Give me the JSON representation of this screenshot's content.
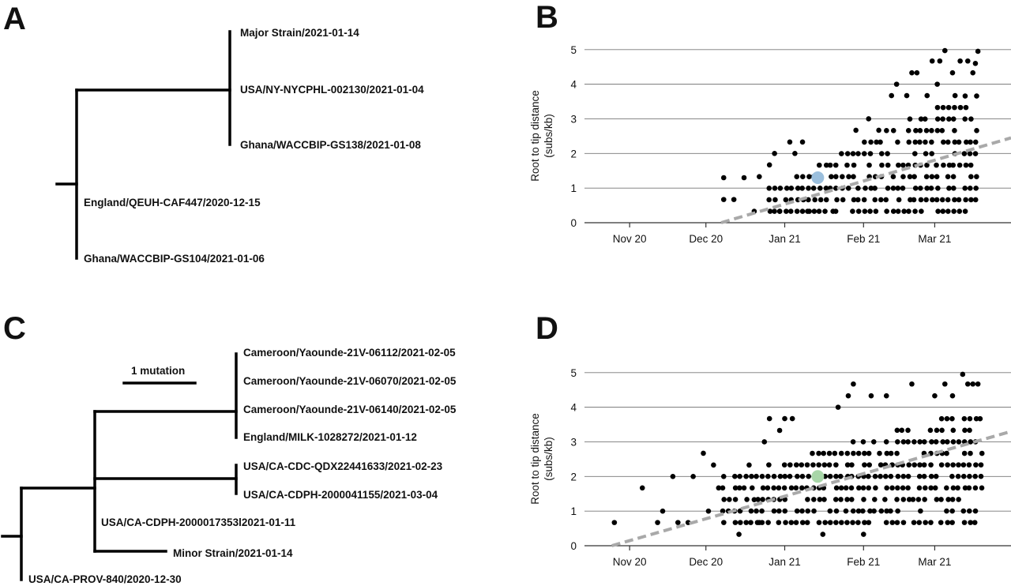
{
  "panels": {
    "a": {
      "letter": "A",
      "highlight_tip": "Major Strain/2021-01-14",
      "highlight_color": "#9bbfdd",
      "tips": [
        "USA/NY-NYCPHL-002130/2021-01-04",
        "Ghana/WACCBIP-GS138/2021-01-08",
        "England/QEUH-CAF447/2020-12-15",
        "Ghana/WACCBIP-GS104/2021-01-06"
      ]
    },
    "c": {
      "letter": "C",
      "scale_label": "1 mutation",
      "highlight_tip": "Minor Strain/2021-01-14",
      "highlight_color": "#a8d6a8",
      "tips": [
        "Cameroon/Yaounde-21V-06112/2021-02-05",
        "Cameroon/Yaounde-21V-06070/2021-02-05",
        "Cameroon/Yaounde-21V-06140/2021-02-05",
        "England/MILK-1028272/2021-01-12",
        "USA/CA-CDC-QDX22441633/2021-02-23",
        "USA/CA-CDPH-2000041155/2021-03-04",
        "USA/CA-CDPH-2000017353l2021-01-11",
        "USA/CA-PROV-840/2020-12-30"
      ]
    },
    "b": {
      "letter": "B",
      "ylabel_line1": "Root to tip distance",
      "ylabel_line2": "(subs/kb)",
      "xticks": [
        "Nov 20",
        "Dec 20",
        "Jan 21",
        "Feb 21",
        "Mar 21"
      ],
      "yticks": [
        "0",
        "1",
        "2",
        "3",
        "4",
        "5"
      ]
    },
    "d": {
      "letter": "D",
      "ylabel_line1": "Root to tip distance",
      "ylabel_line2": "(subs/kb)",
      "xticks": [
        "Nov 20",
        "Dec 20",
        "Jan 21",
        "Feb 21",
        "Mar 21"
      ],
      "yticks": [
        "0",
        "1",
        "2",
        "3",
        "4",
        "5"
      ]
    }
  },
  "chart_data": [
    {
      "panel": "B",
      "type": "scatter",
      "xlabel": "",
      "ylabel": "Root to tip distance (subs/kb)",
      "x_axis": "date",
      "xlim": [
        "2020-10-13",
        "2021-03-31"
      ],
      "ylim": [
        0,
        5.2
      ],
      "xtick_dates": [
        "2020-11-01",
        "2020-12-01",
        "2021-01-01",
        "2021-02-01",
        "2021-03-01"
      ],
      "grid": "horizontal",
      "point_color": "#000000",
      "trend_line": {
        "style": "dashed",
        "color": "#a9a9a9",
        "points": [
          [
            "2020-12-07",
            0
          ],
          [
            "2021-03-31",
            2.45
          ]
        ]
      },
      "highlight_point": {
        "label": "Major Strain/2021-01-14",
        "x": "2021-01-14",
        "y": 1.3,
        "color": "#9bbfdd"
      },
      "points": [
        [
          "2020-12-08",
          1.3
        ],
        [
          "2020-12-08",
          0.67
        ],
        [
          "2020-12-12",
          0.67
        ],
        [
          "2020-12-16",
          1.3
        ],
        [
          "2020-12-20",
          0.33
        ],
        [
          "2020-12-22",
          1.33
        ],
        [
          "2020-12-26",
          1.67
        ],
        [
          "2020-12-28",
          2.0
        ],
        [
          "2020-12-30",
          0.33
        ],
        [
          "2021-01-03",
          2.33
        ],
        [
          "2021-01-05",
          2.0
        ],
        [
          "2021-01-08",
          2.33
        ],
        [
          "2021-01-10",
          0.33
        ],
        [
          "2021-01-20",
          0.33
        ],
        [
          "2021-01-29",
          2.67
        ],
        [
          "2021-02-03",
          3.0
        ],
        [
          "2021-02-07",
          2.67
        ],
        [
          "2021-02-12",
          3.67
        ],
        [
          "2021-02-14",
          4.0
        ],
        [
          "2021-02-18",
          3.67
        ],
        [
          "2021-02-22",
          4.33
        ],
        [
          "2021-02-26",
          3.67
        ],
        [
          "2021-02-28",
          4.67
        ],
        [
          "2021-03-03",
          4.67
        ],
        [
          "2021-03-05",
          4.97
        ],
        [
          "2021-03-08",
          4.33
        ],
        [
          "2021-03-11",
          4.67
        ],
        [
          "2021-03-14",
          4.67
        ],
        [
          "2021-03-16",
          4.33
        ],
        [
          "2021-03-17",
          4.6
        ],
        [
          "2021-03-18",
          4.95
        ],
        [
          "2021-02-20",
          4.33
        ],
        [
          "2021-03-09",
          3.67
        ],
        [
          "2021-03-02",
          4.0
        ]
      ],
      "density_region": {
        "x_from": "2020-12-26",
        "x_to": "2021-03-19",
        "y_from": 0.33,
        "y_to_start": 1.0,
        "y_to_end": 4.0,
        "y_step": 0.333
      }
    },
    {
      "panel": "D",
      "type": "scatter",
      "xlabel": "",
      "ylabel": "Root to tip distance (subs/kb)",
      "x_axis": "date",
      "xlim": [
        "2020-10-13",
        "2021-03-31"
      ],
      "ylim": [
        0,
        5.2
      ],
      "xtick_dates": [
        "2020-11-01",
        "2020-12-01",
        "2021-01-01",
        "2021-02-01",
        "2021-03-01"
      ],
      "grid": "horizontal",
      "point_color": "#000000",
      "trend_line": {
        "style": "dashed",
        "color": "#a9a9a9",
        "points": [
          [
            "2020-10-25",
            0
          ],
          [
            "2021-03-31",
            3.3
          ]
        ]
      },
      "highlight_point": {
        "label": "Minor Strain/2021-01-14",
        "x": "2021-01-14",
        "y": 2.0,
        "color": "#a8d6a8"
      },
      "points": [
        [
          "2020-10-26",
          0.67
        ],
        [
          "2020-11-06",
          1.67
        ],
        [
          "2020-11-12",
          0.67
        ],
        [
          "2020-11-14",
          1.0
        ],
        [
          "2020-11-18",
          2.0
        ],
        [
          "2020-11-20",
          0.67
        ],
        [
          "2020-11-24",
          0.67
        ],
        [
          "2020-11-26",
          2.0
        ],
        [
          "2020-11-30",
          2.67
        ],
        [
          "2020-12-02",
          1.0
        ],
        [
          "2020-12-04",
          2.33
        ],
        [
          "2020-12-06",
          1.67
        ],
        [
          "2020-12-08",
          2.0
        ],
        [
          "2020-12-14",
          0.33
        ],
        [
          "2020-12-16",
          1.67
        ],
        [
          "2020-12-18",
          2.33
        ],
        [
          "2020-12-20",
          1.33
        ],
        [
          "2020-12-22",
          0.67
        ],
        [
          "2020-12-24",
          3.0
        ],
        [
          "2020-12-26",
          3.67
        ],
        [
          "2020-12-30",
          3.33
        ],
        [
          "2021-01-01",
          3.67
        ],
        [
          "2021-01-04",
          3.67
        ],
        [
          "2021-01-16",
          0.33
        ],
        [
          "2021-01-22",
          4.0
        ],
        [
          "2021-01-26",
          4.33
        ],
        [
          "2021-01-28",
          4.67
        ],
        [
          "2021-02-01",
          0.33
        ],
        [
          "2021-02-04",
          4.33
        ],
        [
          "2021-02-10",
          4.33
        ],
        [
          "2021-02-20",
          4.67
        ],
        [
          "2021-03-01",
          4.33
        ],
        [
          "2021-03-05",
          4.67
        ],
        [
          "2021-03-08",
          4.33
        ],
        [
          "2021-03-12",
          4.95
        ],
        [
          "2021-03-14",
          4.67
        ],
        [
          "2021-03-16",
          4.67
        ],
        [
          "2021-03-18",
          4.67
        ]
      ],
      "density_region": {
        "x_from": "2020-12-08",
        "x_to": "2021-03-20",
        "y_from": 0.67,
        "y_to_start": 2.0,
        "y_to_end": 4.0,
        "y_step": 0.333
      }
    }
  ]
}
